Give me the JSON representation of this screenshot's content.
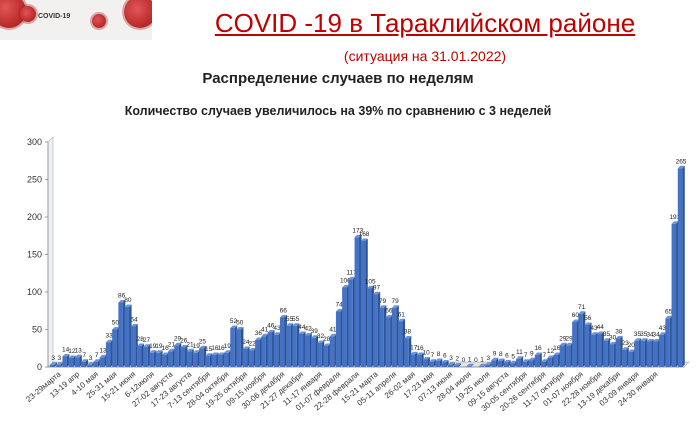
{
  "header": {
    "logo_text": "COVID-19",
    "title": " COVID -19 в Тараклийском районе ",
    "subtitle": "(ситуация на  31.01.2022)"
  },
  "colors": {
    "title": "#c00000",
    "bar": "#4472c4",
    "bar_top": "#6d93d8",
    "bar_side": "#2f5597"
  },
  "chart_data": {
    "type": "bar",
    "title": "Распределение случаев по неделям",
    "subtitle": "Количество случаев увеличилось на 39% по сравнению с 3 неделей",
    "ylim": [
      0,
      300
    ],
    "yticks": [
      0,
      50,
      100,
      150,
      200,
      250,
      300
    ],
    "grid": false,
    "x_tick_labels": [
      "23-29марта",
      "13-19 апр",
      "4-10 мая",
      "25-31 мая",
      "15-21 июня",
      "6-12июля",
      "27-02 августа",
      "17-23 августа",
      "7-13 сентября",
      "28-04 октября",
      "19-25 октября",
      "09-15 ноября",
      "30-06 декабря",
      "21-27 декабря",
      "11-17 января",
      "01-07 февраля",
      "22-28 февраля",
      "15-21 марта",
      "05-11 апреля",
      "26-02 мая",
      "17-23 мая",
      "07-13 июня",
      "28-04 июля",
      "19-25 июля",
      "09-15 августа",
      "30-05 сентября",
      "20-26 сентября",
      "11-17 октября",
      "01-07 ноября",
      "22-28 ноября",
      "13-19 декабря",
      "03-09 января",
      "24-30 января"
    ],
    "data_labels": [
      "3",
      "3",
      "14",
      "12",
      "13",
      "7",
      "3",
      "7",
      "13",
      "33",
      "50",
      "86",
      "80",
      "54",
      "28",
      "27",
      "19",
      "19",
      "16",
      "21",
      "29",
      "26",
      "21",
      "19",
      "25",
      "15",
      "16",
      "16",
      "19",
      "52",
      "50",
      "24",
      "22",
      "36",
      "41",
      "46",
      "43",
      "66",
      "55",
      "55",
      "44",
      "42",
      "39",
      "32",
      "28",
      "41",
      "74",
      "106",
      "117",
      "173",
      "168",
      "105",
      "97",
      "79",
      "66",
      "79",
      "61",
      "38",
      "17",
      "16",
      "10",
      "7",
      "8",
      "6",
      "3",
      "2",
      "0",
      "1",
      "0",
      "1",
      "3",
      "9",
      "8",
      "6",
      "5",
      "11",
      "7",
      "9",
      "16",
      "7",
      "12",
      "16",
      "29",
      "29",
      "60",
      "71",
      "56",
      "43",
      "44",
      "35",
      "30",
      "38",
      "23",
      "20",
      "35",
      "35",
      "34",
      "34",
      "43",
      "65",
      "191",
      "265"
    ],
    "values": [
      3,
      3,
      14,
      12,
      13,
      7,
      3,
      7,
      13,
      33,
      50,
      86,
      80,
      54,
      28,
      27,
      19,
      19,
      16,
      21,
      29,
      26,
      21,
      19,
      25,
      15,
      16,
      16,
      19,
      52,
      50,
      24,
      22,
      36,
      41,
      46,
      43,
      66,
      55,
      55,
      44,
      42,
      39,
      32,
      28,
      41,
      74,
      106,
      117,
      173,
      168,
      105,
      97,
      79,
      66,
      79,
      61,
      38,
      17,
      16,
      10,
      7,
      8,
      6,
      3,
      2,
      0,
      1,
      0,
      1,
      3,
      9,
      8,
      6,
      5,
      11,
      7,
      9,
      16,
      7,
      12,
      16,
      29,
      29,
      60,
      71,
      56,
      43,
      44,
      35,
      30,
      38,
      23,
      20,
      35,
      35,
      34,
      34,
      43,
      65,
      191,
      265
    ]
  }
}
